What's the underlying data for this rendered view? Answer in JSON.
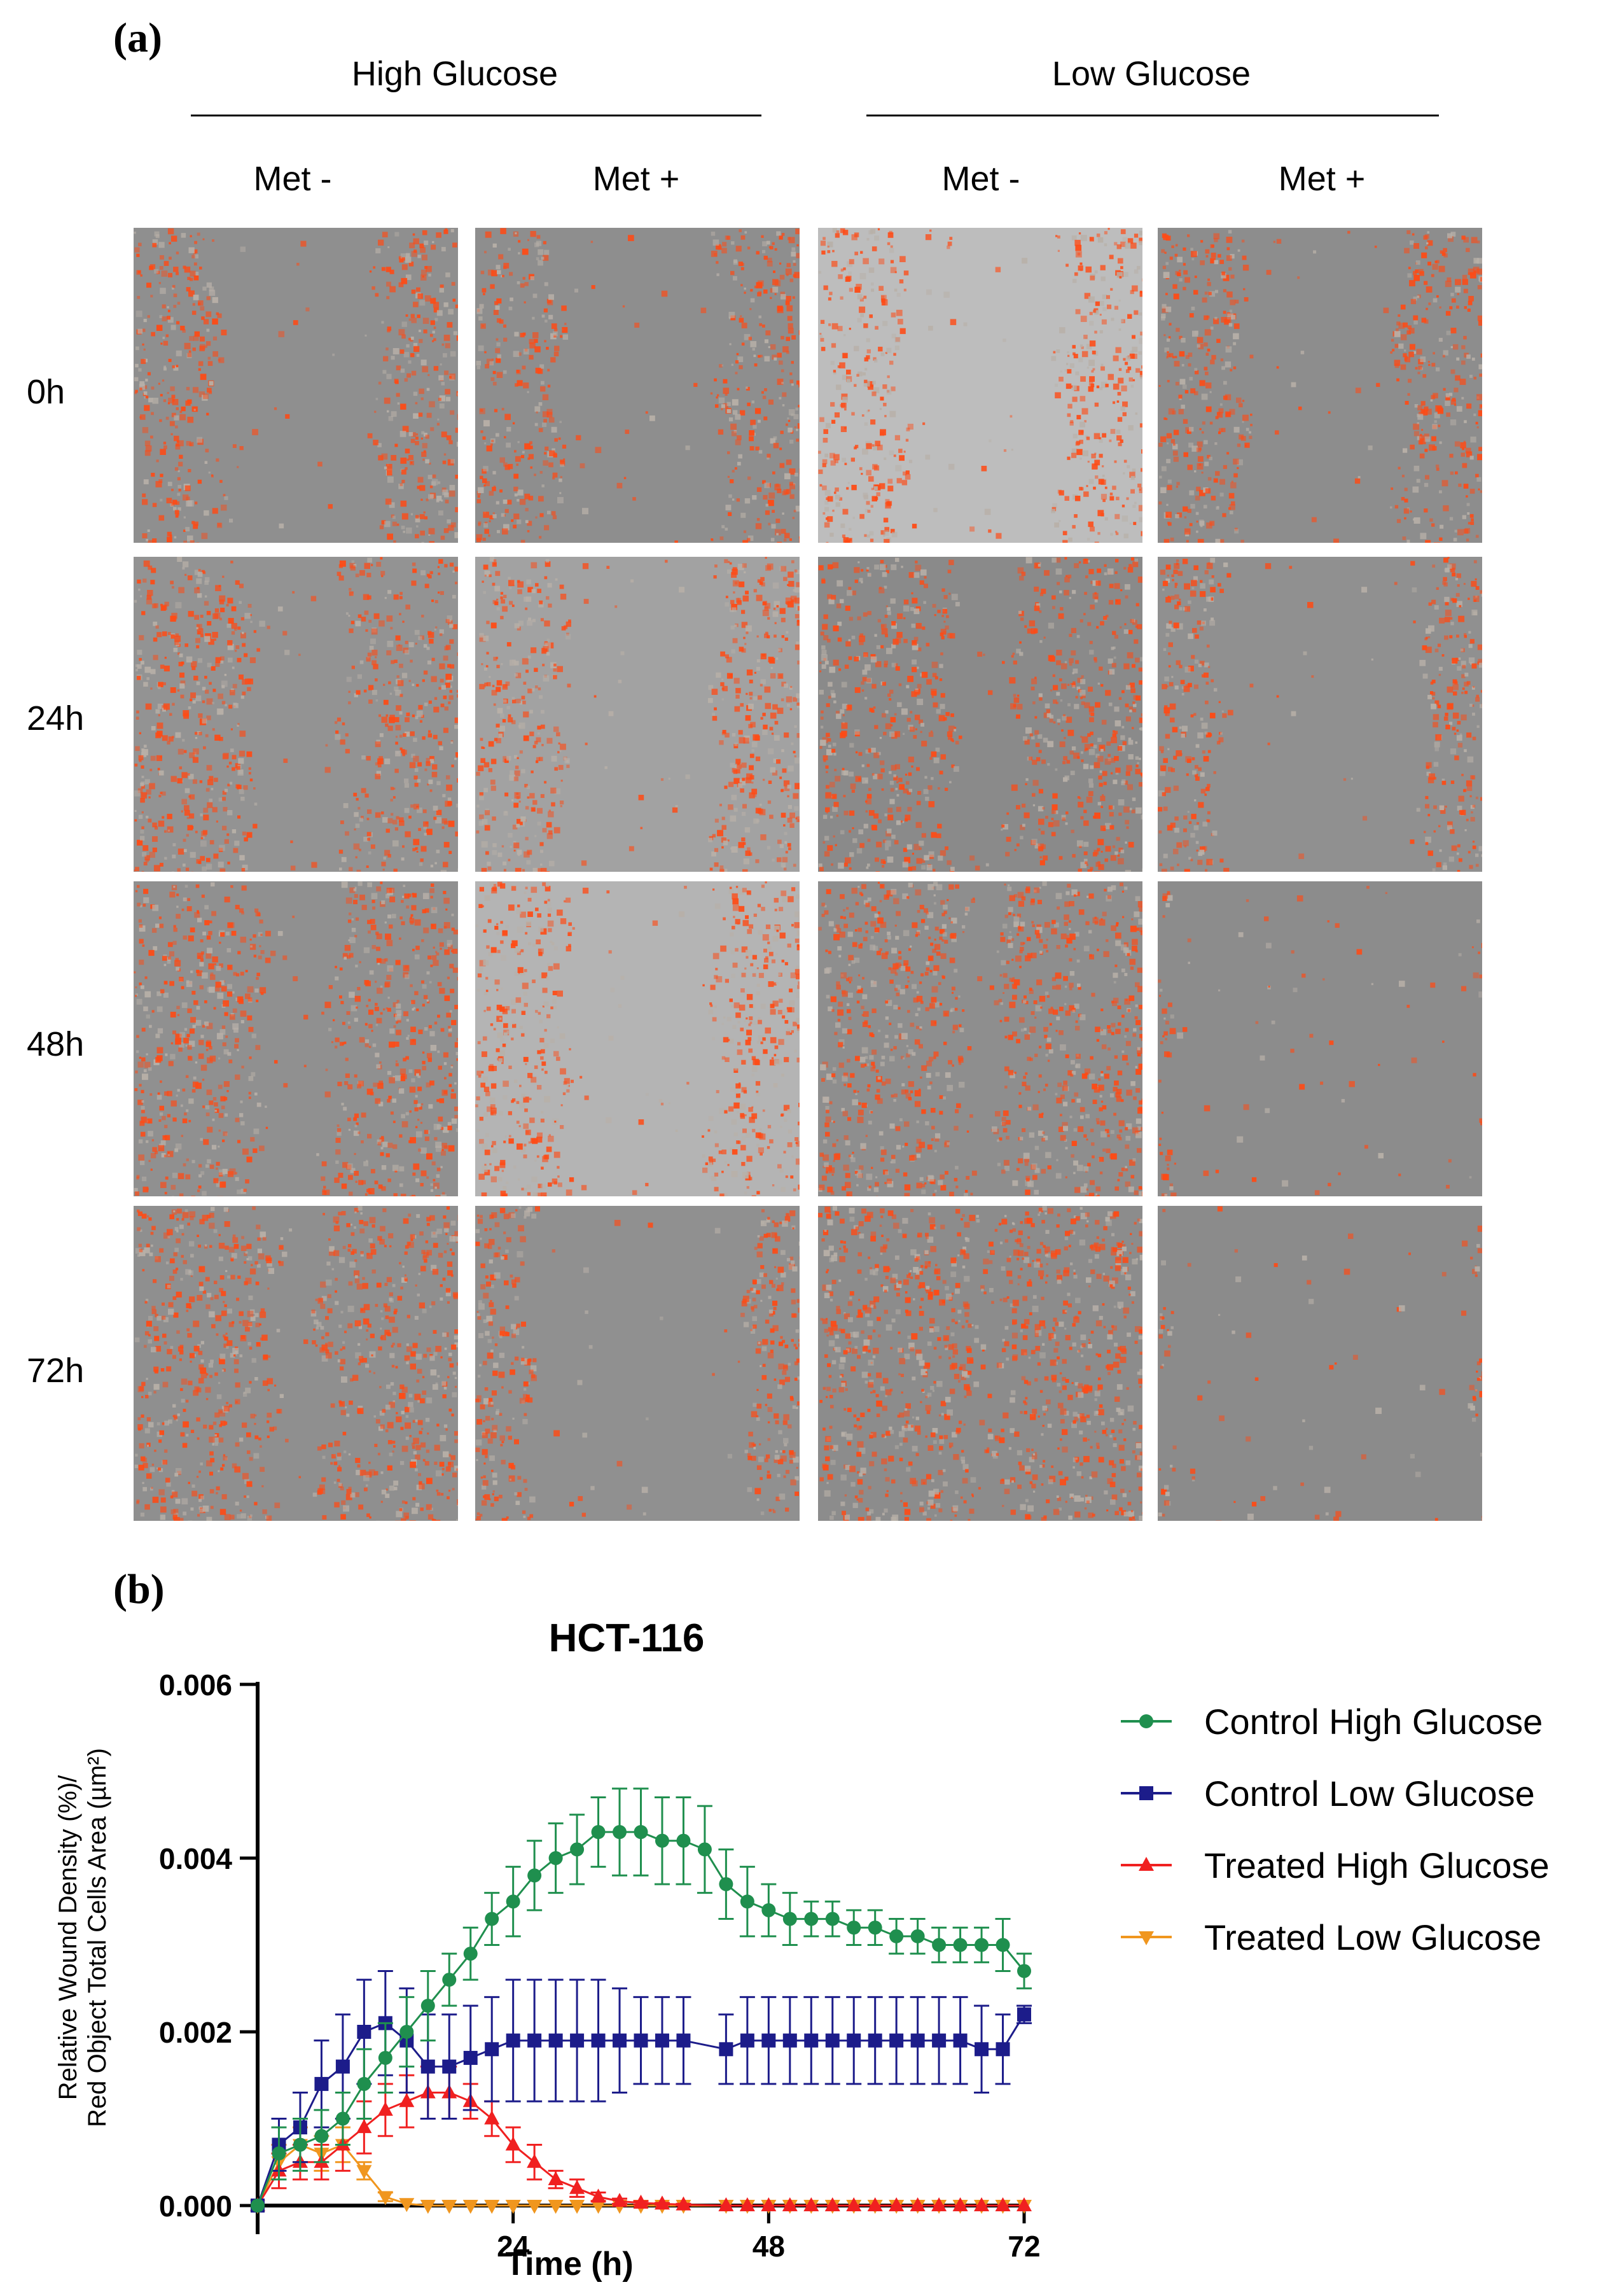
{
  "panel_a": {
    "label": "(a)",
    "groups": [
      {
        "title": "High Glucose",
        "conditions": [
          "Met -",
          "Met +"
        ]
      },
      {
        "title": "Low Glucose",
        "conditions": [
          "Met -",
          "Met +"
        ]
      }
    ],
    "timepoints": [
      "0h",
      "24h",
      "48h",
      "72h"
    ],
    "tiles": [
      [
        {
          "wound_open_pct": 49,
          "bg": "#8f8f8f"
        },
        {
          "wound_open_pct": 50,
          "bg": "#8e8e8e"
        },
        {
          "wound_open_pct": 48,
          "bg": "#bdbdbd"
        },
        {
          "wound_open_pct": 48,
          "bg": "#8d8d8d"
        }
      ],
      [
        {
          "wound_open_pct": 28,
          "bg": "#939393"
        },
        {
          "wound_open_pct": 48,
          "bg": "#a2a2a2"
        },
        {
          "wound_open_pct": 18,
          "bg": "#8a8a8a"
        },
        {
          "wound_open_pct": 64,
          "bg": "#909090"
        }
      ],
      [
        {
          "wound_open_pct": 20,
          "bg": "#909090"
        },
        {
          "wound_open_pct": 44,
          "bg": "#b4b4b4"
        },
        {
          "wound_open_pct": 10,
          "bg": "#8e8e8e"
        },
        {
          "wound_open_pct": 96,
          "bg": "#8c8c8c"
        }
      ],
      [
        {
          "wound_open_pct": 14,
          "bg": "#8f8f8f"
        },
        {
          "wound_open_pct": 68,
          "bg": "#909090"
        },
        {
          "wound_open_pct": 4,
          "bg": "#8c8c8c"
        },
        {
          "wound_open_pct": 96,
          "bg": "#8b8b8b"
        }
      ]
    ],
    "cell_color": "#ff4a14"
  },
  "panel_b": {
    "label": "(b)"
  },
  "chart_data": {
    "type": "line",
    "title": "HCT-116",
    "xlabel": "Time (h)",
    "ylabel_line1": "Relative Wound Density (%)/",
    "ylabel_line2": "Red Object Total Cells Area (µm²)",
    "xlim": [
      0,
      72
    ],
    "ylim": [
      0,
      0.006
    ],
    "xticks": [
      24,
      48,
      72
    ],
    "xtick_labels": [
      "24",
      "48",
      "72"
    ],
    "yticks": [
      0,
      0.002,
      0.004,
      0.006
    ],
    "ytick_labels": [
      "0.000",
      "0.002",
      "0.004",
      "0.006"
    ],
    "legend_position": "right",
    "series": [
      {
        "name": "Control High Glucose",
        "color": "#1f8f4e",
        "marker": "circle",
        "x": [
          0,
          2,
          4,
          6,
          8,
          10,
          12,
          14,
          16,
          18,
          20,
          22,
          24,
          26,
          28,
          30,
          32,
          34,
          36,
          38,
          40,
          42,
          44,
          46,
          48,
          50,
          52,
          54,
          56,
          58,
          60,
          62,
          64,
          66,
          68,
          70,
          72
        ],
        "y": [
          0,
          0.0006,
          0.0007,
          0.0008,
          0.001,
          0.0014,
          0.0017,
          0.002,
          0.0023,
          0.0026,
          0.0029,
          0.0033,
          0.0035,
          0.0038,
          0.004,
          0.0041,
          0.0043,
          0.0043,
          0.0043,
          0.0042,
          0.0042,
          0.0041,
          0.0037,
          0.0035,
          0.0034,
          0.0033,
          0.0033,
          0.0033,
          0.0032,
          0.0032,
          0.0031,
          0.0031,
          0.003,
          0.003,
          0.003,
          0.003,
          0.0027
        ],
        "err": [
          0,
          0.0003,
          0.0003,
          0.0003,
          0.0003,
          0.0004,
          0.0004,
          0.0004,
          0.0004,
          0.0003,
          0.0003,
          0.0003,
          0.0004,
          0.0004,
          0.0004,
          0.0004,
          0.0004,
          0.0005,
          0.0005,
          0.0005,
          0.0005,
          0.0005,
          0.0004,
          0.0004,
          0.0003,
          0.0003,
          0.0002,
          0.0002,
          0.0002,
          0.0002,
          0.0002,
          0.0002,
          0.0002,
          0.0002,
          0.0002,
          0.0003,
          0.0002
        ]
      },
      {
        "name": "Control Low Glucose",
        "color": "#1c1c8a",
        "marker": "square",
        "x": [
          0,
          2,
          4,
          6,
          8,
          10,
          12,
          14,
          16,
          18,
          20,
          22,
          24,
          26,
          28,
          30,
          32,
          34,
          36,
          38,
          40,
          44,
          46,
          48,
          50,
          52,
          54,
          56,
          58,
          60,
          62,
          64,
          66,
          68,
          70,
          72
        ],
        "y": [
          0,
          0.0007,
          0.0009,
          0.0014,
          0.0016,
          0.002,
          0.0021,
          0.0019,
          0.0016,
          0.0016,
          0.0017,
          0.0018,
          0.0019,
          0.0019,
          0.0019,
          0.0019,
          0.0019,
          0.0019,
          0.0019,
          0.0019,
          0.0019,
          0.0018,
          0.0019,
          0.0019,
          0.0019,
          0.0019,
          0.0019,
          0.0019,
          0.0019,
          0.0019,
          0.0019,
          0.0019,
          0.0019,
          0.0018,
          0.0018,
          0.0022
        ],
        "err": [
          0,
          0.0003,
          0.0004,
          0.0005,
          0.0006,
          0.0006,
          0.0006,
          0.0006,
          0.0006,
          0.0006,
          0.0006,
          0.0006,
          0.0007,
          0.0007,
          0.0007,
          0.0007,
          0.0007,
          0.0006,
          0.0005,
          0.0005,
          0.0005,
          0.0004,
          0.0005,
          0.0005,
          0.0005,
          0.0005,
          0.0005,
          0.0005,
          0.0005,
          0.0005,
          0.0005,
          0.0005,
          0.0005,
          0.0005,
          0.0004,
          0.0001
        ]
      },
      {
        "name": "Treated High Glucose",
        "color": "#f02020",
        "marker": "triangle-up",
        "x": [
          0,
          2,
          4,
          6,
          8,
          10,
          12,
          14,
          16,
          18,
          20,
          22,
          24,
          26,
          28,
          30,
          32,
          34,
          36,
          38,
          40,
          44,
          46,
          48,
          50,
          52,
          54,
          56,
          58,
          60,
          62,
          64,
          66,
          68,
          70,
          72
        ],
        "y": [
          0,
          0.0004,
          0.0005,
          0.0005,
          0.0007,
          0.0009,
          0.0011,
          0.0012,
          0.0013,
          0.0013,
          0.0012,
          0.001,
          0.0007,
          0.0005,
          0.0003,
          0.0002,
          0.0001,
          5e-05,
          3e-05,
          2e-05,
          1e-05,
          0,
          0,
          0,
          0,
          0,
          0,
          0,
          0,
          0,
          0,
          0,
          0,
          0,
          0,
          0
        ],
        "err": [
          0,
          0.0002,
          0.0002,
          0.0002,
          0.0003,
          0.0003,
          0.0003,
          0.0003,
          0.0003,
          0.0003,
          0.0002,
          0.0002,
          0.0002,
          0.0002,
          0.0001,
          0.0001,
          5e-05,
          3e-05,
          2e-05,
          1e-05,
          1e-05,
          0,
          0,
          0,
          0,
          0,
          0,
          0,
          0,
          0,
          0,
          0,
          0,
          0,
          0,
          0
        ]
      },
      {
        "name": "Treated Low Glucose",
        "color": "#f0961e",
        "marker": "triangle-down",
        "x": [
          0,
          2,
          4,
          6,
          8,
          10,
          12,
          14,
          16,
          18,
          20,
          22,
          24,
          26,
          28,
          30,
          32,
          34,
          36,
          38,
          40,
          44,
          46,
          48,
          50,
          52,
          54,
          56,
          58,
          60,
          62,
          64,
          66,
          68,
          70,
          72
        ],
        "y": [
          0,
          0.0005,
          0.0007,
          0.0006,
          0.0007,
          0.0004,
          0.0001,
          2e-05,
          0,
          0,
          0,
          0,
          0,
          0,
          0,
          0,
          0,
          0,
          0,
          0,
          0,
          0,
          0,
          0,
          0,
          0,
          0,
          0,
          0,
          0,
          0,
          0,
          0,
          0,
          0,
          0
        ],
        "err": [
          0,
          0.0002,
          0.0002,
          0.0002,
          0.0002,
          0.0001,
          5e-05,
          0,
          0,
          0,
          0,
          0,
          0,
          0,
          0,
          0,
          0,
          0,
          0,
          0,
          0,
          0,
          0,
          0,
          0,
          0,
          0,
          0,
          0,
          0,
          0,
          0,
          0,
          0,
          0,
          0
        ]
      }
    ]
  }
}
